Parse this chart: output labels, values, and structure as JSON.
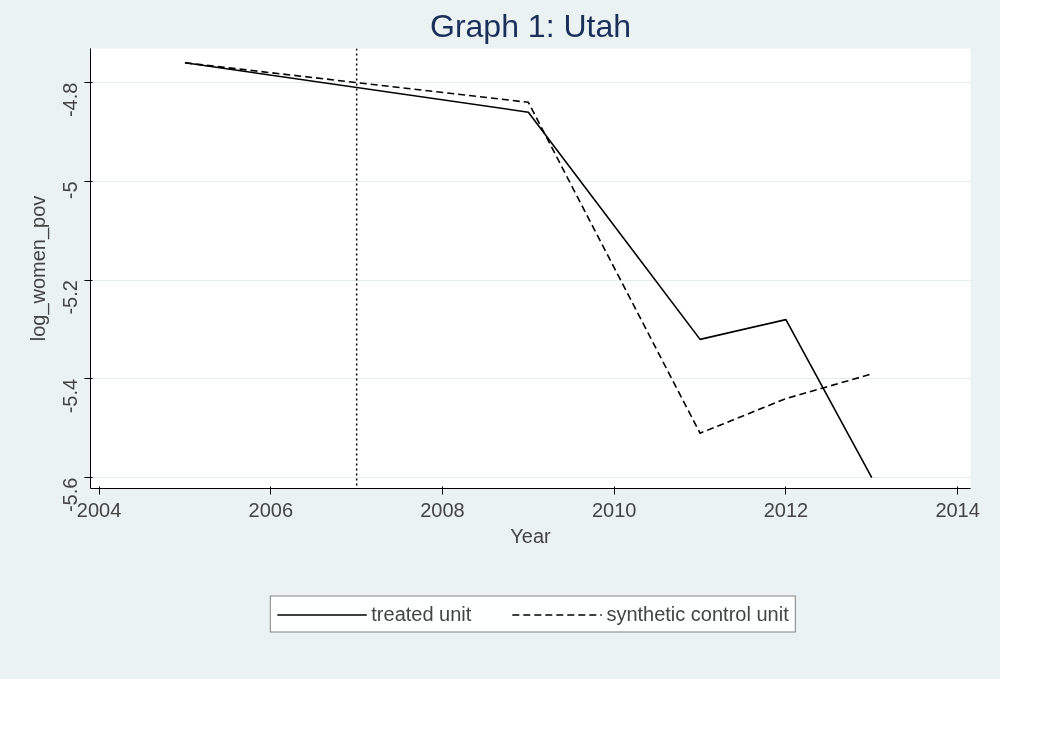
{
  "chart_data": {
    "type": "line",
    "title": "Graph 1: Utah",
    "xlabel": "Year",
    "ylabel": "log_women_pov",
    "series": [
      {
        "name": "treated unit",
        "color": "#000000",
        "line_style": "solid",
        "x": [
          2005,
          2009,
          2011,
          2012,
          2013
        ],
        "values": [
          -4.76,
          -4.86,
          -5.32,
          -5.28,
          -5.6
        ]
      },
      {
        "name": "synthetic control unit",
        "color": "#000000",
        "line_style": "dashed",
        "x": [
          2005,
          2009,
          2011,
          2012,
          2013
        ],
        "values": [
          -4.76,
          -4.84,
          -5.51,
          -5.44,
          -5.39
        ]
      }
    ],
    "xlim": [
      2003.9,
      2014.15
    ],
    "ylim": [
      -5.622,
      -4.731
    ],
    "xticks": [
      2004,
      2006,
      2008,
      2010,
      2012,
      2014
    ],
    "yticks": [
      {
        "value": -5.6,
        "label": "-5.6"
      },
      {
        "value": -5.4,
        "label": "-5.4"
      },
      {
        "value": -5.2,
        "label": "-5.2"
      },
      {
        "value": -5,
        "label": "-5"
      },
      {
        "value": -4.8,
        "label": "-4.8"
      }
    ],
    "grid": "y",
    "legend": "bottom",
    "ref_lines": [
      {
        "axis": "x",
        "value": 2007,
        "line_style": "dotted",
        "color": "#000000"
      }
    ]
  }
}
